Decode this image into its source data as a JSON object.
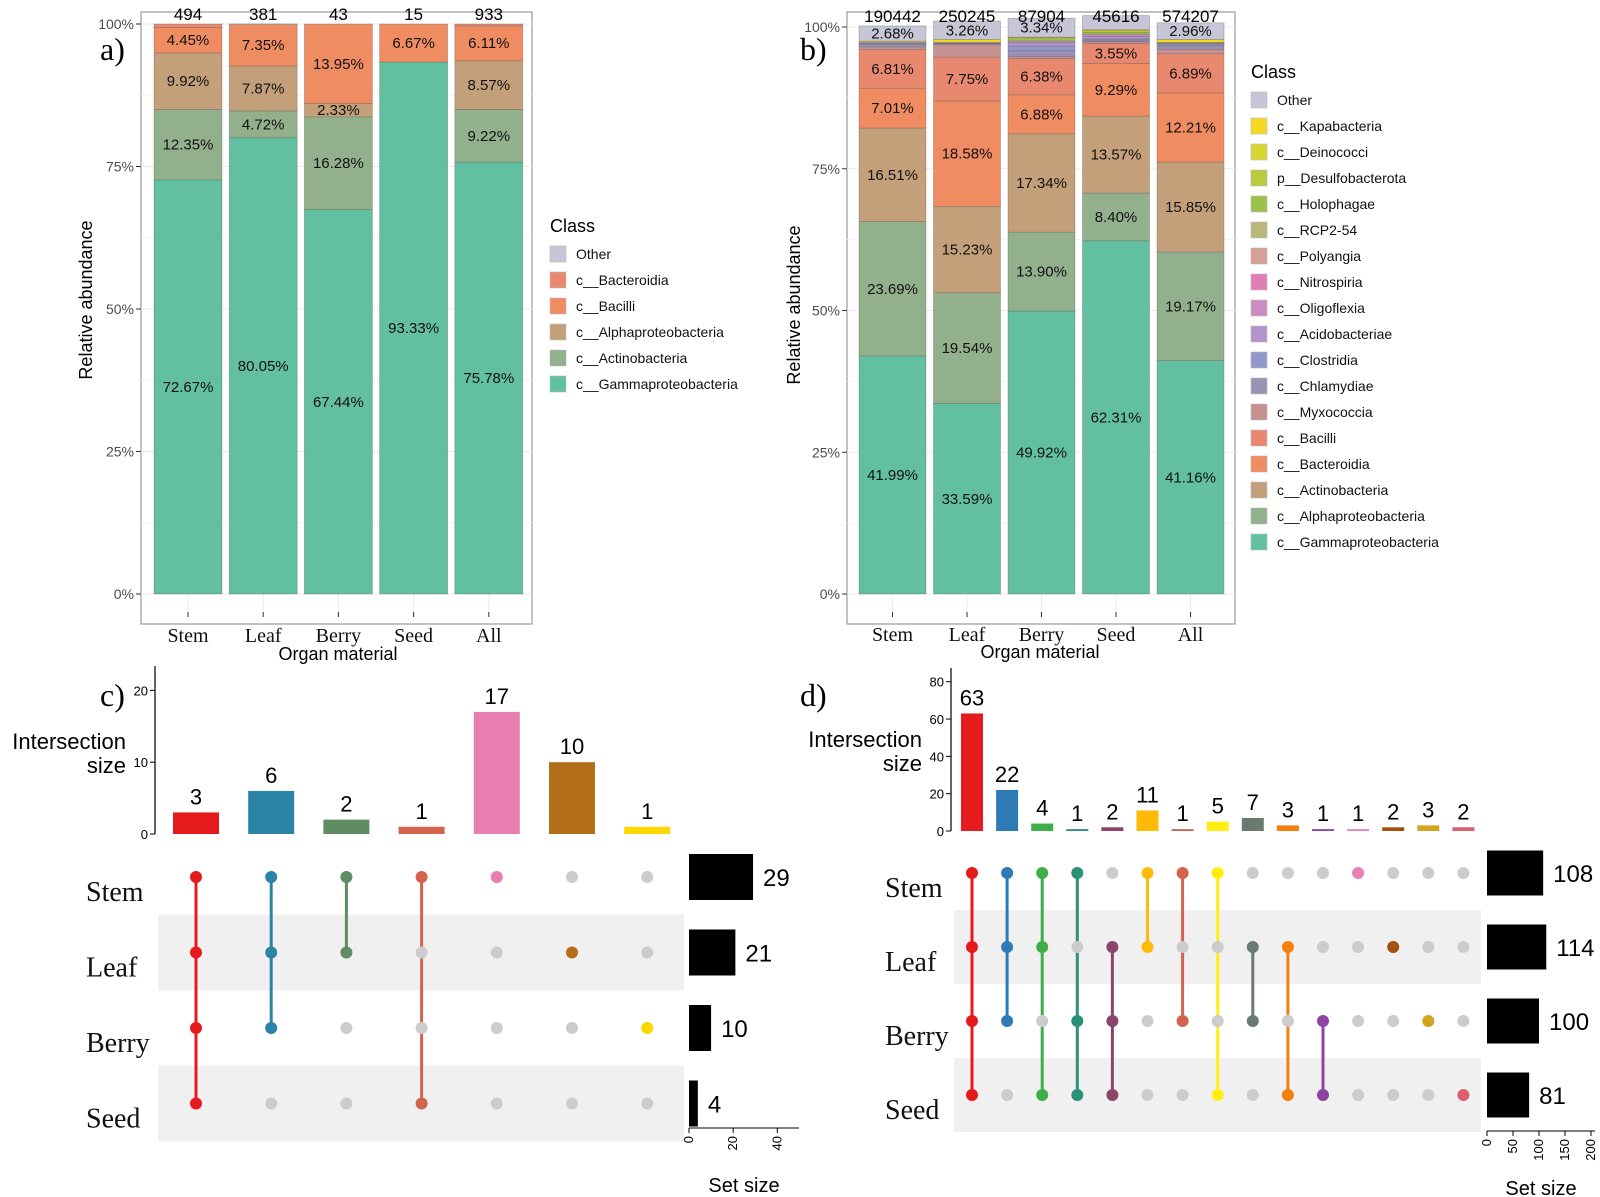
{
  "figure": {
    "panels": [
      "a)",
      "b)",
      "c)",
      "d)"
    ]
  },
  "chart_data": [
    {
      "id": "a",
      "type": "bar",
      "stacked": true,
      "panel_label": "a)",
      "xlabel": "Organ material",
      "ylabel": "Relative abundance",
      "ylim": [
        0,
        100
      ],
      "yticks": [
        "0%",
        "25%",
        "50%",
        "75%",
        "100%"
      ],
      "grid": true,
      "categories": [
        "Stem",
        "Leaf",
        "Berry",
        "Seed",
        "All"
      ],
      "totals": [
        "494",
        "381",
        "43",
        "15",
        "933"
      ],
      "legend": {
        "title": "Class",
        "placement": "right",
        "items": [
          {
            "name": "Other",
            "color": "#c6c6d6"
          },
          {
            "name": "c__Bacteroidia",
            "color": "#e8896f"
          },
          {
            "name": "c__Bacilli",
            "color": "#f08c62"
          },
          {
            "name": "c__Alphaproteobacteria",
            "color": "#c4a07a"
          },
          {
            "name": "c__Actinobacteria",
            "color": "#93b08d"
          },
          {
            "name": "c__Gammaproteobacteria",
            "color": "#63bfa1"
          }
        ]
      },
      "series": [
        {
          "name": "c__Gammaproteobacteria",
          "values": [
            72.67,
            80.05,
            67.44,
            93.33,
            75.78
          ],
          "labels": [
            "72.67%",
            "80.05%",
            "67.44%",
            "93.33%",
            "75.78%"
          ]
        },
        {
          "name": "c__Actinobacteria",
          "values": [
            12.35,
            4.72,
            16.28,
            0,
            9.22
          ],
          "labels": [
            "12.35%",
            "4.72%",
            "16.28%",
            "",
            "9.22%"
          ]
        },
        {
          "name": "c__Alphaproteobacteria",
          "values": [
            9.92,
            7.87,
            2.33,
            0,
            8.57
          ],
          "labels": [
            "9.92%",
            "7.87%",
            "2.33%",
            "",
            "8.57%"
          ]
        },
        {
          "name": "c__Bacilli",
          "values": [
            4.45,
            7.35,
            13.95,
            6.67,
            6.11
          ],
          "labels": [
            "4.45%",
            "7.35%",
            "13.95%",
            "6.67%",
            "6.11%"
          ]
        },
        {
          "name": "c__Bacteroidia",
          "values": [
            0.61,
            0,
            0,
            0,
            0.32
          ],
          "labels": [
            "",
            "",
            "",
            "",
            ""
          ]
        },
        {
          "name": "Other",
          "values": [
            0,
            0.01,
            0,
            0,
            0
          ],
          "labels": [
            "",
            "",
            "",
            "",
            ""
          ]
        }
      ]
    },
    {
      "id": "b",
      "type": "bar",
      "stacked": true,
      "panel_label": "b)",
      "xlabel": "Organ material",
      "ylabel": "Relative abundance",
      "ylim": [
        0,
        100
      ],
      "yticks": [
        "0%",
        "25%",
        "50%",
        "75%",
        "100%"
      ],
      "grid": true,
      "categories": [
        "Stem",
        "Leaf",
        "Berry",
        "Seed",
        "All"
      ],
      "totals": [
        "190442",
        "250245",
        "87904",
        "45616",
        "574207"
      ],
      "legend": {
        "title": "Class",
        "placement": "right",
        "items": [
          {
            "name": "Other",
            "color": "#c6c6d6"
          },
          {
            "name": "c__Kapabacteria",
            "color": "#f5d820"
          },
          {
            "name": "c__Deinococci",
            "color": "#d8d631"
          },
          {
            "name": "p__Desulfobacterota",
            "color": "#b8cc3e"
          },
          {
            "name": "c__Holophagae",
            "color": "#9cc24a"
          },
          {
            "name": "c__RCP2-54",
            "color": "#b9b77a"
          },
          {
            "name": "c__Polyangia",
            "color": "#d4a095"
          },
          {
            "name": "c__Nitrospiria",
            "color": "#e07fb6"
          },
          {
            "name": "c__Oligoflexia",
            "color": "#cc8cc2"
          },
          {
            "name": "c__Acidobacteriae",
            "color": "#b394cc"
          },
          {
            "name": "c__Clostridia",
            "color": "#9098cc"
          },
          {
            "name": "c__Chlamydiae",
            "color": "#9a92b4"
          },
          {
            "name": "c__Myxococcia",
            "color": "#c49090"
          },
          {
            "name": "c__Bacilli",
            "color": "#e8896f"
          },
          {
            "name": "c__Bacteroidia",
            "color": "#f08c62"
          },
          {
            "name": "c__Actinobacteria",
            "color": "#c4a07a"
          },
          {
            "name": "c__Alphaproteobacteria",
            "color": "#93b08d"
          },
          {
            "name": "c__Gammaproteobacteria",
            "color": "#63bfa1"
          }
        ]
      },
      "series": [
        {
          "name": "c__Gammaproteobacteria",
          "values": [
            41.99,
            33.59,
            49.92,
            62.31,
            41.16
          ],
          "labels": [
            "41.99%",
            "33.59%",
            "49.92%",
            "62.31%",
            "41.16%"
          ]
        },
        {
          "name": "c__Alphaproteobacteria",
          "values": [
            23.69,
            19.54,
            13.9,
            8.4,
            19.17
          ],
          "labels": [
            "23.69%",
            "19.54%",
            "13.90%",
            "8.40%",
            "19.17%"
          ]
        },
        {
          "name": "c__Actinobacteria",
          "values": [
            16.51,
            15.23,
            17.34,
            13.57,
            15.85
          ],
          "labels": [
            "16.51%",
            "15.23%",
            "17.34%",
            "13.57%",
            "15.85%"
          ]
        },
        {
          "name": "c__Bacteroidia",
          "values": [
            7.01,
            18.58,
            6.88,
            9.29,
            12.21
          ],
          "labels": [
            "7.01%",
            "18.58%",
            "6.88%",
            "9.29%",
            "12.21%"
          ]
        },
        {
          "name": "c__Bacilli",
          "values": [
            6.81,
            7.75,
            6.38,
            3.55,
            6.89
          ],
          "labels": [
            "6.81%",
            "7.75%",
            "6.38%",
            "3.55%",
            "6.89%"
          ]
        },
        {
          "name": "c__Myxococcia",
          "values": [
            0.5,
            2.2,
            0.4,
            0.3,
            0.8
          ],
          "labels": [
            "",
            "",
            "",
            "",
            ""
          ]
        },
        {
          "name": "c__Chlamydiae",
          "values": [
            0.4,
            0.2,
            1.0,
            0.3,
            0.6
          ],
          "labels": [
            "",
            "",
            "",
            "",
            ""
          ]
        },
        {
          "name": "c__Clostridia",
          "values": [
            0.2,
            0.1,
            0.8,
            0.2,
            0.2
          ],
          "labels": [
            "",
            "",
            "",
            "",
            ""
          ]
        },
        {
          "name": "c__Acidobacteriae",
          "values": [
            0.2,
            0.1,
            0.6,
            0.4,
            0.2
          ],
          "labels": [
            "",
            "",
            "",
            "",
            ""
          ]
        },
        {
          "name": "c__Oligoflexia",
          "values": [
            0,
            0,
            0.3,
            0.4,
            0.1
          ],
          "labels": [
            "",
            "",
            "",
            "",
            ""
          ]
        },
        {
          "name": "c__Holophagae",
          "values": [
            0,
            0,
            0.6,
            0.4,
            0.1
          ],
          "labels": [
            "",
            "",
            "",
            "",
            ""
          ]
        },
        {
          "name": "c__Deinococci",
          "values": [
            0,
            0,
            0,
            0.3,
            0
          ],
          "labels": [
            "",
            "",
            "",
            "",
            ""
          ]
        },
        {
          "name": "c__Kapabacteria",
          "values": [
            0.2,
            0.5,
            0.1,
            0.1,
            0.5
          ],
          "labels": [
            "",
            "",
            "",
            "",
            ""
          ]
        },
        {
          "name": "Other",
          "values": [
            2.68,
            3.26,
            3.34,
            2.5,
            2.96
          ],
          "labels": [
            "2.68%",
            "3.26%",
            "3.34%",
            "",
            "2.96%"
          ]
        }
      ]
    },
    {
      "id": "c",
      "type": "upset",
      "panel_label": "c)",
      "ylabel": "Intersection size",
      "ylim": [
        0,
        22
      ],
      "yticks": [
        0,
        10,
        20
      ],
      "sets": [
        "Stem",
        "Leaf",
        "Berry",
        "Seed"
      ],
      "set_sizes": [
        29,
        21,
        10,
        4
      ],
      "set_size_label": "Set size",
      "set_size_xlim": [
        0,
        48
      ],
      "set_size_ticks": [
        0,
        20,
        40
      ],
      "intersections": [
        {
          "sets": [
            "Stem",
            "Leaf",
            "Berry",
            "Seed"
          ],
          "size": 3,
          "color": "#e41a1c"
        },
        {
          "sets": [
            "Stem",
            "Leaf",
            "Berry"
          ],
          "size": 6,
          "color": "#2b83a6"
        },
        {
          "sets": [
            "Stem",
            "Leaf"
          ],
          "size": 2,
          "color": "#5f8c63"
        },
        {
          "sets": [
            "Stem",
            "Seed"
          ],
          "size": 1,
          "color": "#d2634c"
        },
        {
          "sets": [
            "Stem"
          ],
          "size": 17,
          "color": "#e97fb0"
        },
        {
          "sets": [
            "Leaf"
          ],
          "size": 10,
          "color": "#b36e19"
        },
        {
          "sets": [
            "Berry"
          ],
          "size": 1,
          "color": "#ffd700"
        }
      ]
    },
    {
      "id": "d",
      "type": "upset",
      "panel_label": "d)",
      "ylabel": "Intersection size",
      "ylim": [
        0,
        82
      ],
      "yticks": [
        0,
        20,
        40,
        60,
        80
      ],
      "sets": [
        "Stem",
        "Leaf",
        "Berry",
        "Seed"
      ],
      "set_sizes": [
        108,
        114,
        100,
        81
      ],
      "set_size_label": "Set size",
      "set_size_xlim": [
        0,
        200
      ],
      "set_size_ticks": [
        0,
        50,
        100,
        150,
        200
      ],
      "intersections": [
        {
          "sets": [
            "Stem",
            "Leaf",
            "Berry",
            "Seed"
          ],
          "size": 63,
          "color": "#e41a1c"
        },
        {
          "sets": [
            "Stem",
            "Leaf",
            "Berry"
          ],
          "size": 22,
          "color": "#2c7bb6"
        },
        {
          "sets": [
            "Stem",
            "Leaf",
            "Seed"
          ],
          "size": 4,
          "color": "#3fae49"
        },
        {
          "sets": [
            "Stem",
            "Berry",
            "Seed"
          ],
          "size": 1,
          "color": "#2a9079"
        },
        {
          "sets": [
            "Leaf",
            "Berry",
            "Seed"
          ],
          "size": 2,
          "color": "#8c4468"
        },
        {
          "sets": [
            "Stem",
            "Leaf"
          ],
          "size": 11,
          "color": "#ffba08"
        },
        {
          "sets": [
            "Stem",
            "Berry"
          ],
          "size": 1,
          "color": "#d2634c"
        },
        {
          "sets": [
            "Stem",
            "Seed"
          ],
          "size": 5,
          "color": "#ffee10"
        },
        {
          "sets": [
            "Leaf",
            "Berry"
          ],
          "size": 7,
          "color": "#6b7a70"
        },
        {
          "sets": [
            "Leaf",
            "Seed"
          ],
          "size": 3,
          "color": "#f57f0c"
        },
        {
          "sets": [
            "Berry",
            "Seed"
          ],
          "size": 1,
          "color": "#8e44a0"
        },
        {
          "sets": [
            "Stem"
          ],
          "size": 1,
          "color": "#ea80b6"
        },
        {
          "sets": [
            "Leaf"
          ],
          "size": 2,
          "color": "#a44e10"
        },
        {
          "sets": [
            "Berry"
          ],
          "size": 3,
          "color": "#d4a420"
        },
        {
          "sets": [
            "Seed"
          ],
          "size": 2,
          "color": "#da6070"
        }
      ]
    }
  ]
}
